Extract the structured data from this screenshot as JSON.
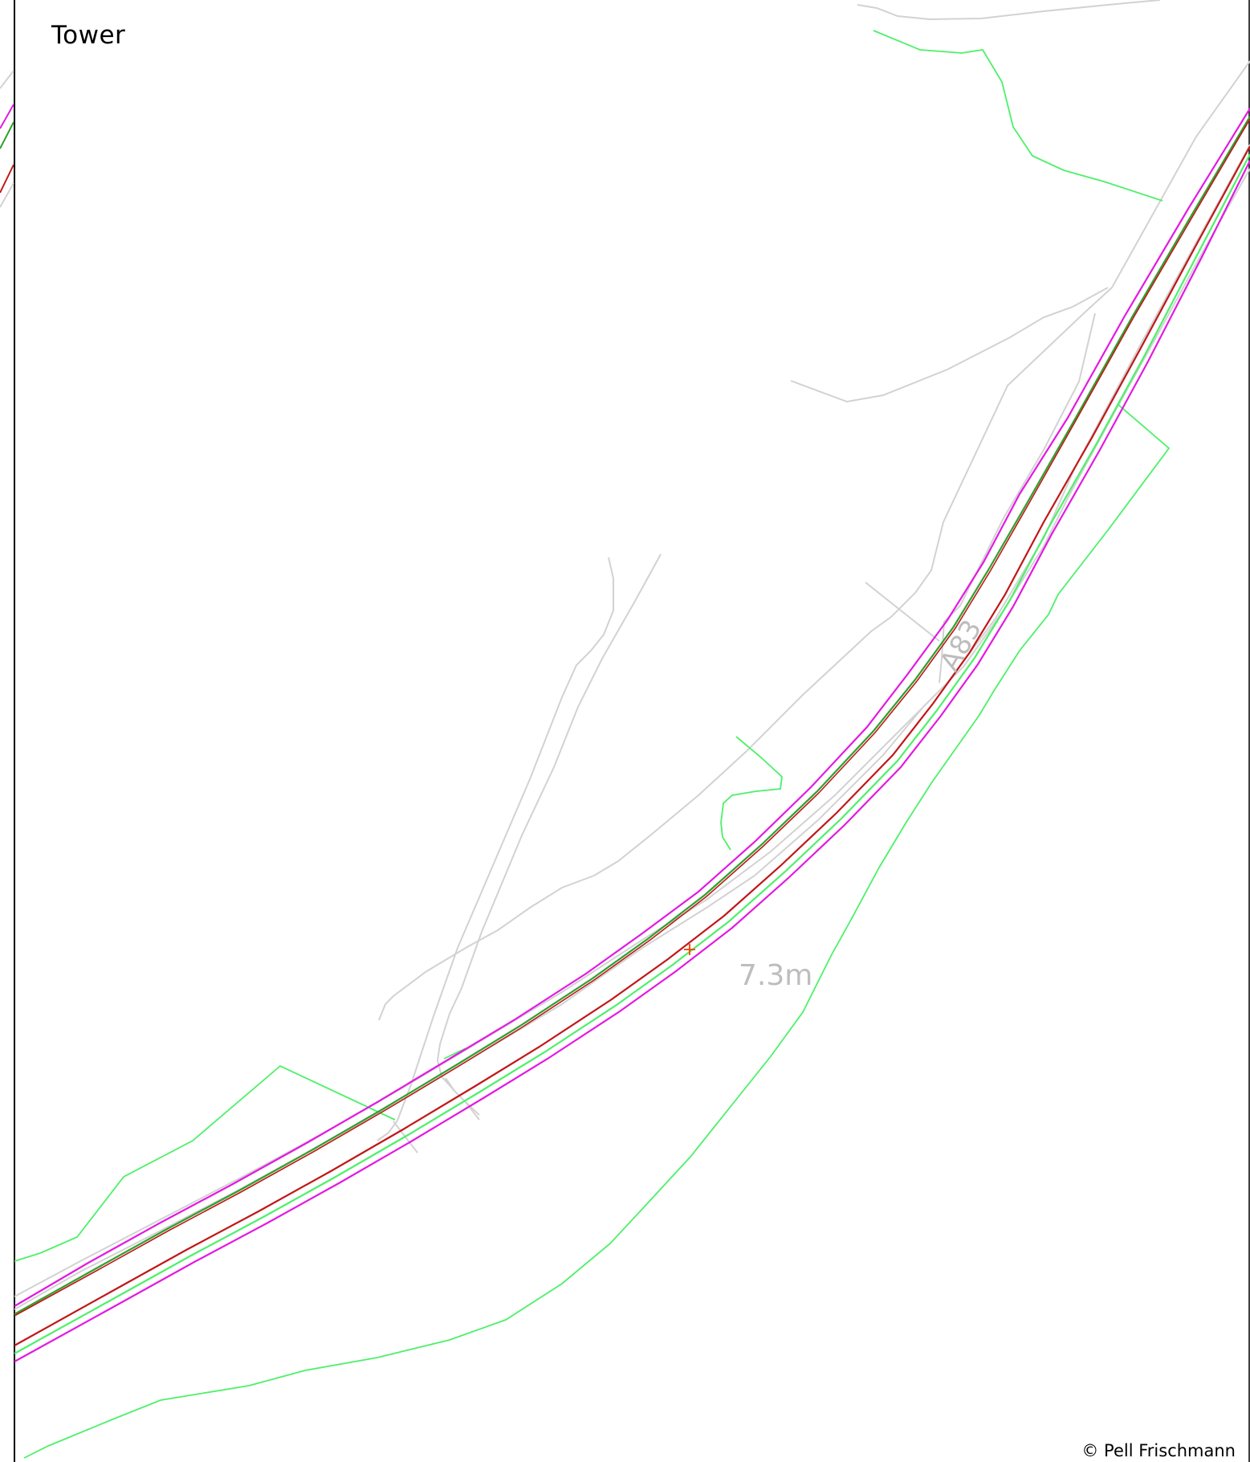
{
  "map": {
    "place_label": "Tower",
    "road_label": "A83",
    "width_label": "7.3m",
    "copyright": "© Pell Frischmann",
    "colors": {
      "background": "#ffffff",
      "os_linework": "#d2d2d2",
      "boundary": "#4ef06a",
      "carriageway_edge": "#c01818",
      "verge": "#e21ae2",
      "centreline": "#2fa02f",
      "marker": "#ff3b00",
      "frame": "#000000"
    }
  }
}
